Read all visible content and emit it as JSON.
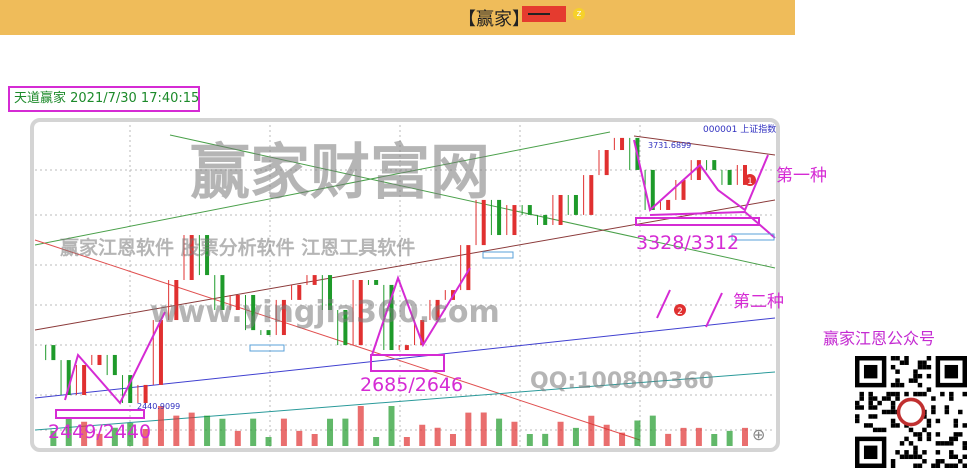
{
  "banner": {
    "title": "【赢家】",
    "badge_icon": "red-label",
    "coin_icon": "coin-icon"
  },
  "stamp": {
    "text": "天道赢家 2021/7/30 17:40:15"
  },
  "chart_data": {
    "type": "candlestick",
    "title": "000001 上证指数",
    "values": [
      2722,
      2649,
      2479,
      2625,
      2674,
      2576,
      2440,
      2528,
      2844,
      3039,
      3258,
      3063,
      2893,
      2966,
      2795,
      2771,
      2942,
      3015,
      3063,
      2893,
      2722,
      3039,
      3015,
      2698,
      2722,
      2844,
      2942,
      2990,
      3209,
      3429,
      3258,
      3404,
      3356,
      3307,
      3453,
      3356,
      3550,
      3672,
      3731,
      3575,
      3380,
      3429,
      3526,
      3623,
      3575,
      3502,
      3599
    ],
    "annotations": {
      "high": "3731.6899",
      "low": "2440.9099"
    },
    "grid": true
  },
  "labels": {
    "low1": "2449/2440",
    "low2": "2685/2646",
    "low3": "3328/3312",
    "type1": "第一种",
    "type2": "第二种",
    "marker1": "1",
    "marker2": "2"
  },
  "watermarks": {
    "main": "赢家财富网",
    "sub1": "赢家江恩软件 股票分析软件 江恩工具软件",
    "url": "www.yingjia360.com",
    "qq": "QQ:100800360"
  },
  "qr": {
    "title": "赢家江恩公众号"
  },
  "colors": {
    "annotation": "#d52bd4",
    "up": "#e03030",
    "down": "#1e9a2a"
  }
}
